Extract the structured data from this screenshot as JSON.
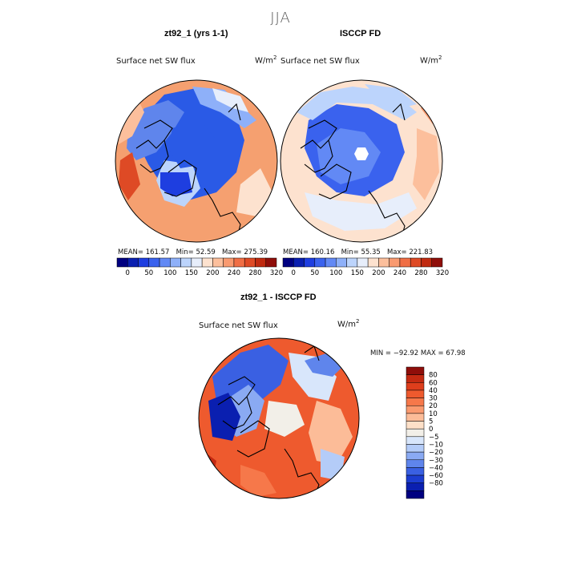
{
  "figure": {
    "season": "JJA",
    "units_base": "W/m",
    "units_exp": "2"
  },
  "panels": {
    "model": {
      "title": "zt92_1 (yrs 1-1)",
      "variable": "Surface net SW flux",
      "mean_label": "MEAN=",
      "mean": "161.57",
      "min_label": "Min=",
      "min": "52.59",
      "max_label": "Max=",
      "max": "275.39"
    },
    "obs": {
      "title": "ISCCP FD",
      "variable": "Surface net SW flux",
      "mean_label": "MEAN=",
      "mean": "160.16",
      "min_label": "Min=",
      "min": "55.35",
      "max_label": "Max=",
      "max": "221.83"
    },
    "diff": {
      "title": "zt92_1 - ISCCP FD",
      "variable": "Surface net SW flux",
      "minmax_text": "MIN = −92.92 MAX =  67.98"
    }
  },
  "colorbar_top": {
    "orientation": "horizontal",
    "colors": [
      "#000080",
      "#0a1fb0",
      "#1e3ee0",
      "#3a62ee",
      "#6289f5",
      "#8eb0f9",
      "#bcd4fc",
      "#e7eefb",
      "#fde2cf",
      "#fcbf9c",
      "#f99a70",
      "#f06e45",
      "#de4a25",
      "#c02a10",
      "#8f0e0a"
    ],
    "tick_labels": [
      "0",
      "50",
      "100",
      "150",
      "200",
      "240",
      "280",
      "320"
    ]
  },
  "colorbar_diff": {
    "orientation": "vertical",
    "colors": [
      "#8f0e0a",
      "#c42a12",
      "#de3e1c",
      "#ee5a2e",
      "#f6784a",
      "#fa9a6f",
      "#fcbc98",
      "#fde0c8",
      "#f2efe8",
      "#d8e6fb",
      "#b4ccf8",
      "#8aaaf3",
      "#5f85ec",
      "#3a60e2",
      "#1c3dd0",
      "#0a1fb0",
      "#000080"
    ],
    "tick_labels": [
      "80",
      "60",
      "40",
      "30",
      "20",
      "10",
      "5",
      "0",
      "−5",
      "−10",
      "−20",
      "−30",
      "−40",
      "−60",
      "−80"
    ]
  },
  "map_colors": {
    "model": {
      "background": "#f5a070",
      "blobs": [
        "#2a5ae6",
        "#5f85ec",
        "#8eb0f9",
        "#bcd4fc",
        "#fcbf9c",
        "#e7eefb",
        "#2a5ae6",
        "#1e3ee0",
        "#fde2cf",
        "#de4a25"
      ]
    },
    "obs": {
      "background": "#fde2cf",
      "blobs": [
        "#3a62ee",
        "#6289f5",
        "#bcd4fc",
        "#e7eefb",
        "#fcbf9c",
        "#fde2cf",
        "#ffffff",
        "#bcd4fc",
        "#f99a70"
      ]
    },
    "diff": {
      "background": "#ee5a2e",
      "blobs": [
        "#3a60e2",
        "#8aaaf3",
        "#d8e6fb",
        "#f2efe8",
        "#0a1fb0",
        "#fcbc98",
        "#f6784a",
        "#5f85ec",
        "#b4ccf8",
        "#c42a12"
      ]
    }
  }
}
